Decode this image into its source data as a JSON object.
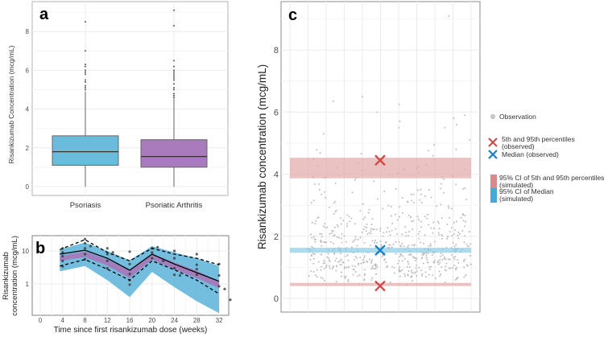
{
  "chart_data": [
    {
      "panel": "a",
      "type": "box",
      "ylabel": "Risankizumab Concentration (mcg/mL)",
      "ylim": [
        -0.5,
        9.3
      ],
      "yticks": [
        0,
        2,
        4,
        6,
        8
      ],
      "categories": [
        "Psoriasis",
        "Psoriatic Arthritis"
      ],
      "boxes": [
        {
          "name": "Psoriasis",
          "color": "#6bbcdc",
          "min": 0,
          "q1": 1.1,
          "median": 1.8,
          "q3": 2.62,
          "max": 4.9,
          "outliers": [
            5.0,
            5.1,
            5.2,
            5.4,
            5.5,
            5.8,
            5.9,
            6.0,
            6.2,
            6.3,
            7.0,
            8.5
          ]
        },
        {
          "name": "Psoriatic Arthritis",
          "color": "#a97bbd",
          "min": 0,
          "q1": 1.0,
          "median": 1.55,
          "q3": 2.42,
          "max": 4.55,
          "outliers": [
            4.6,
            4.7,
            4.8,
            5.0,
            5.1,
            5.3,
            5.5,
            5.6,
            5.7,
            5.8,
            5.9,
            6.0,
            6.2,
            6.5,
            8.3,
            9.1
          ]
        }
      ]
    },
    {
      "panel": "b",
      "type": "line",
      "xlabel": "Time since first risankizumab dose (weeks)",
      "ylabel": [
        "Risankizumab",
        "concentration (mcg/mL)"
      ],
      "yscale": "log",
      "xlim": [
        -2,
        35
      ],
      "ylim": [
        0.12,
        30
      ],
      "xticks": [
        0,
        4,
        8,
        12,
        16,
        20,
        24,
        28,
        32
      ],
      "yticks": [
        {
          "v": 1,
          "label": "1"
        },
        {
          "v": 10,
          "label": "10"
        }
      ],
      "x": [
        3.5,
        8,
        12,
        16,
        20,
        24,
        28,
        32
      ],
      "pi_band": {
        "name": "95% CI of 5th and 95th percentiles (simulated)",
        "color": "#5bb2d8",
        "lower": [
          2.4,
          3.5,
          1.3,
          0.4,
          2.3,
          0.8,
          0.3,
          0.13
        ],
        "upper": [
          11,
          18,
          10,
          5.2,
          14,
          9,
          6,
          3.5
        ]
      },
      "median_band": {
        "name": "95% CI of Median (simulated)",
        "color": "#a876b8",
        "lower": [
          5,
          6.5,
          3.6,
          1.5,
          5.5,
          2.8,
          1.5,
          0.75
        ],
        "upper": [
          7,
          9.5,
          5.5,
          2.5,
          8,
          4.5,
          2.5,
          1.2
        ]
      },
      "observed_median": [
        8,
        10.5,
        6,
        2.6,
        8,
        4,
        2.2,
        1.2
      ],
      "observed_p95": [
        11,
        22,
        9,
        5,
        12,
        8,
        6,
        3.8
      ],
      "observed_p5": [
        3.5,
        5.5,
        2.8,
        1.3,
        5,
        2.7,
        1.3,
        0.5
      ],
      "observations": [
        [
          4,
          12
        ],
        [
          4,
          9
        ],
        [
          4,
          7
        ],
        [
          4,
          5
        ],
        [
          4,
          3.4
        ],
        [
          8,
          23
        ],
        [
          8,
          17
        ],
        [
          8,
          12
        ],
        [
          8,
          8
        ],
        [
          8,
          5.6
        ],
        [
          9,
          14
        ],
        [
          12,
          12
        ],
        [
          12,
          8
        ],
        [
          12,
          5
        ],
        [
          12,
          3
        ],
        [
          13,
          9
        ],
        [
          16,
          9.5
        ],
        [
          16,
          4
        ],
        [
          16,
          2
        ],
        [
          16,
          1.3
        ],
        [
          16,
          0.95
        ],
        [
          20,
          12
        ],
        [
          20,
          9
        ],
        [
          20,
          6
        ],
        [
          21,
          13
        ],
        [
          22,
          5
        ],
        [
          24,
          10
        ],
        [
          24,
          6
        ],
        [
          24,
          3
        ],
        [
          24,
          1.9
        ],
        [
          25,
          1.8
        ],
        [
          28,
          8
        ],
        [
          28,
          3.8
        ],
        [
          28,
          2.8
        ],
        [
          28,
          1.9
        ],
        [
          32,
          4
        ],
        [
          32,
          1.8
        ],
        [
          32,
          0.85
        ],
        [
          33,
          0.7
        ],
        [
          34,
          0.33
        ]
      ]
    },
    {
      "panel": "c",
      "type": "scatter",
      "ylabel": "Risankizumab concentration (mcg/mL)",
      "ylim": [
        -0.7,
        9.6
      ],
      "yticks": [
        0,
        2,
        4,
        6,
        8
      ],
      "observations": {
        "name": "Observation",
        "color": "#bdbdbd",
        "count": 600,
        "extremes": [
          9.1,
          6.5,
          6.35,
          6.25,
          6.0,
          5.9,
          5.8,
          5.7,
          5.6,
          5.5,
          5.5,
          5.3,
          5.1,
          4.95
        ]
      },
      "percentile_band_upper": {
        "lower": 3.87,
        "upper": 4.53,
        "color": "#e3a8a8"
      },
      "percentile_band_lower": {
        "lower": 0.4,
        "upper": 0.5,
        "color": "#e3a8a8"
      },
      "median_band": {
        "lower": 1.47,
        "upper": 1.63,
        "color": "#8ccbe6"
      },
      "observed_p95": 4.45,
      "observed_p5": 0.4,
      "observed_median": 1.55,
      "legend": {
        "observation": "Observation",
        "percentiles_obs": [
          "5th and 95th percentiles",
          "(observed)"
        ],
        "median_obs": "Median (observed)",
        "percentiles_sim": [
          "95% CI of 5th and 95th percentiles",
          "(simulated)"
        ],
        "median_sim": [
          "95% CI of Median",
          "(simulated)"
        ],
        "colors": {
          "red": "#d04a4a",
          "blue": "#1a7fc1",
          "red_fill": "#d98a8a",
          "blue_fill": "#4aa8d4"
        }
      }
    }
  ],
  "panels": {
    "a": "a",
    "b": "b",
    "c": "c"
  }
}
